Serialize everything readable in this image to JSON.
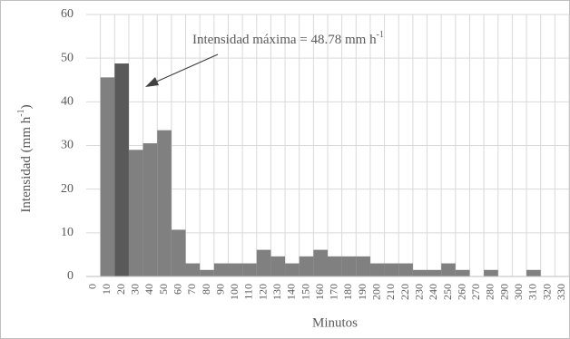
{
  "chart_data": {
    "type": "bar",
    "annotation": {
      "text": "Intensidad  máxima = 48.78 mm h",
      "superscript": "-1"
    },
    "y_label": {
      "text": "Intensidad  (mm h",
      "superscript": "-1",
      "suffix": ")"
    },
    "x_label": "Minutos",
    "categories": [
      "0",
      "10",
      "20",
      "30",
      "40",
      "50",
      "60",
      "70",
      "80",
      "90",
      "100",
      "110",
      "120",
      "130",
      "140",
      "150",
      "160",
      "170",
      "180",
      "190",
      "200",
      "210",
      "220",
      "230",
      "240",
      "250",
      "260",
      "270",
      "280",
      "290",
      "300",
      "310",
      "320",
      "330"
    ],
    "values": [
      0,
      45.6,
      48.78,
      29,
      30.5,
      33.5,
      10.7,
      3,
      1.5,
      3,
      3,
      3,
      6.1,
      4.6,
      3,
      4.6,
      6.1,
      4.6,
      4.6,
      4.6,
      3,
      3,
      3,
      1.5,
      1.5,
      3,
      1.5,
      0,
      1.5,
      0,
      0,
      1.5,
      0,
      0
    ],
    "colors": [
      "#808080",
      "#808080",
      "#595959",
      "#808080",
      "#808080",
      "#808080",
      "#808080",
      "#808080",
      "#808080",
      "#808080",
      "#808080",
      "#808080",
      "#808080",
      "#808080",
      "#808080",
      "#808080",
      "#808080",
      "#808080",
      "#808080",
      "#808080",
      "#808080",
      "#808080",
      "#808080",
      "#808080",
      "#808080",
      "#808080",
      "#808080",
      "#808080",
      "#808080",
      "#808080",
      "#808080",
      "#808080",
      "#808080",
      "#808080"
    ],
    "ylim": [
      0,
      60
    ],
    "yticks": [
      0,
      10,
      20,
      30,
      40,
      50,
      60
    ],
    "grid": true
  }
}
